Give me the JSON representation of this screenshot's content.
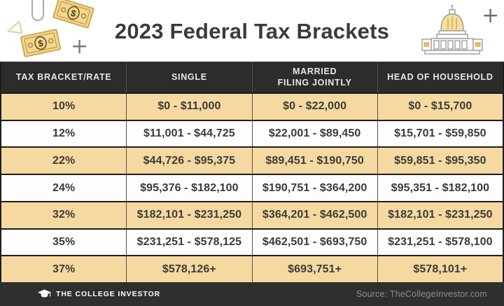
{
  "title": "2023 Federal Tax Brackets",
  "chart_data": {
    "type": "table",
    "title": "2023 Federal Tax Brackets",
    "columns": [
      "TAX BRACKET/RATE",
      "SINGLE",
      "MARRIED FILING JOINTLY",
      "HEAD OF HOUSEHOLD"
    ],
    "rows": [
      [
        "10%",
        "$0 - $11,000",
        "$0 - $22,000",
        "$0 - $15,700"
      ],
      [
        "12%",
        "$11,001 - $44,725",
        "$22,001 - $89,450",
        "$15,701 - $59,850"
      ],
      [
        "22%",
        "$44,726 - $95,375",
        "$89,451 - $190,750",
        "$59,851 - $95,350"
      ],
      [
        "24%",
        "$95,376 - $182,100",
        "$190,751 - $364,200",
        "$95,351 - $182,100"
      ],
      [
        "32%",
        "$182,101 - $231,250",
        "$364,201 - $462,500",
        "$182,101 - $231,250"
      ],
      [
        "35%",
        "$231,251 - $578,125",
        "$462,501 - $693,750",
        "$231,251 - $578,100"
      ],
      [
        "37%",
        "$578,126+",
        "$693,751+",
        "$578,101+"
      ]
    ],
    "layout": {
      "row_striping": "tan/white alternating starting tan",
      "header": "dark bar, white caps text"
    }
  },
  "header_labels": [
    "TAX BRACKET/RATE",
    "SINGLE",
    "MARRIED\nFILING JOINTLY",
    "HEAD OF HOUSEHOLD"
  ],
  "footer": {
    "brand": "THE COLLEGE INVESTOR",
    "source": "Source: TheCollegeInvestor.com"
  },
  "icons": {
    "decorations": [
      "paperclip-icon",
      "dollar-bill-icon",
      "dollar-bill-icon",
      "triangle-icon",
      "plus-icon",
      "plus-icon",
      "capitol-building-icon"
    ],
    "brand_icon": "graduation-cap-icon"
  },
  "colors": {
    "row_tan": "#f5d9a1",
    "header_bg": "#2d2c2a",
    "footer_bg": "#302f2d",
    "text_dark": "#3c3b38",
    "gold": "#d9ab4c",
    "gold_fill": "#f2d694",
    "outline_gray": "#9c9c9c"
  }
}
